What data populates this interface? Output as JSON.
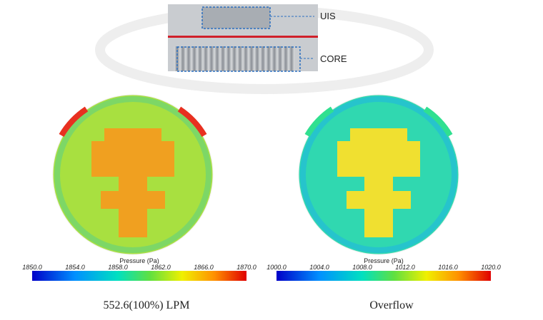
{
  "schematic": {
    "labels": [
      "UIS",
      "CORE"
    ]
  },
  "panels": [
    {
      "legend_title": "Pressure (Pa)",
      "ticks": [
        "1850.0",
        "1854.0",
        "1858.0",
        "1862.0",
        "1866.0",
        "1870.0"
      ],
      "caption": "552.6(100%) LPM"
    },
    {
      "legend_title": "Pressure (Pa)",
      "ticks": [
        "1000.0",
        "1004.0",
        "1008.0",
        "1012.0",
        "1016.0",
        "1020.0"
      ],
      "caption": "Overflow"
    }
  ]
}
